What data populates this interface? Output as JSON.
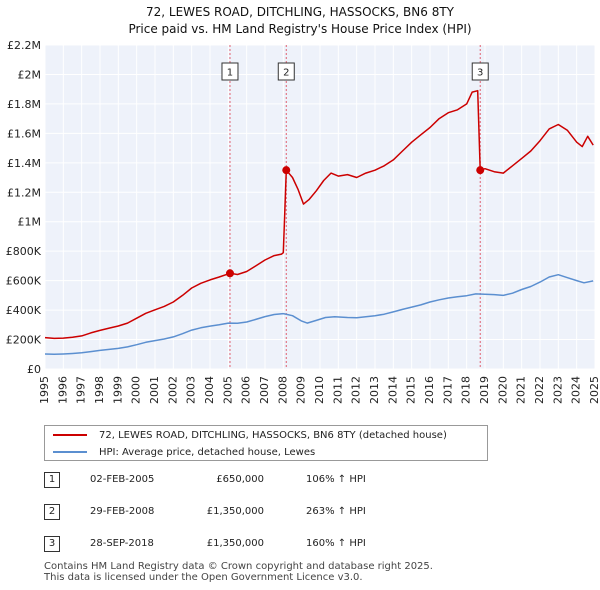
{
  "chart_data": {
    "type": "line",
    "title": "72, LEWES ROAD, DITCHLING, HASSOCKS, BN6 8TY",
    "subtitle": "Price paid vs. HM Land Registry's House Price Index (HPI)",
    "xlabel": "",
    "ylabel": "",
    "xlim": [
      1995,
      2025
    ],
    "ylim": [
      0,
      2200000
    ],
    "x_ticks": [
      "1995",
      "1996",
      "1997",
      "1998",
      "1999",
      "2000",
      "2001",
      "2002",
      "2003",
      "2004",
      "2005",
      "2006",
      "2007",
      "2008",
      "2009",
      "2010",
      "2011",
      "2012",
      "2013",
      "2014",
      "2015",
      "2016",
      "2017",
      "2018",
      "2019",
      "2020",
      "2021",
      "2022",
      "2023",
      "2024",
      "2025"
    ],
    "y_ticks": [
      {
        "value": 0,
        "label": "£0"
      },
      {
        "value": 200000,
        "label": "£200K"
      },
      {
        "value": 400000,
        "label": "£400K"
      },
      {
        "value": 600000,
        "label": "£600K"
      },
      {
        "value": 800000,
        "label": "£800K"
      },
      {
        "value": 1000000,
        "label": "£1M"
      },
      {
        "value": 1200000,
        "label": "£1.2M"
      },
      {
        "value": 1400000,
        "label": "£1.4M"
      },
      {
        "value": 1600000,
        "label": "£1.6M"
      },
      {
        "value": 1800000,
        "label": "£1.8M"
      },
      {
        "value": 2000000,
        "label": "£2M"
      },
      {
        "value": 2200000,
        "label": "£2.2M"
      }
    ],
    "grid": true,
    "series": [
      {
        "name": "72, LEWES ROAD, DITCHLING, HASSOCKS, BN6 8TY (detached house)",
        "color": "#cc0000",
        "points": [
          [
            1995.0,
            213000
          ],
          [
            1995.5,
            208000
          ],
          [
            1996.0,
            210000
          ],
          [
            1996.5,
            215000
          ],
          [
            1997.0,
            225000
          ],
          [
            1997.5,
            245000
          ],
          [
            1998.0,
            262000
          ],
          [
            1998.5,
            278000
          ],
          [
            1999.0,
            292000
          ],
          [
            1999.5,
            312000
          ],
          [
            2000.0,
            345000
          ],
          [
            2000.5,
            378000
          ],
          [
            2001.0,
            402000
          ],
          [
            2001.5,
            425000
          ],
          [
            2002.0,
            455000
          ],
          [
            2002.5,
            500000
          ],
          [
            2003.0,
            550000
          ],
          [
            2003.5,
            582000
          ],
          [
            2004.0,
            605000
          ],
          [
            2004.5,
            625000
          ],
          [
            2005.09,
            650000
          ],
          [
            2005.5,
            642000
          ],
          [
            2006.0,
            662000
          ],
          [
            2006.5,
            700000
          ],
          [
            2007.0,
            740000
          ],
          [
            2007.5,
            770000
          ],
          [
            2007.9,
            780000
          ],
          [
            2008.0,
            790000
          ],
          [
            2008.16,
            1350000
          ],
          [
            2008.5,
            1300000
          ],
          [
            2008.8,
            1220000
          ],
          [
            2009.1,
            1120000
          ],
          [
            2009.4,
            1150000
          ],
          [
            2009.8,
            1210000
          ],
          [
            2010.2,
            1280000
          ],
          [
            2010.6,
            1330000
          ],
          [
            2011.0,
            1310000
          ],
          [
            2011.5,
            1320000
          ],
          [
            2012.0,
            1300000
          ],
          [
            2012.5,
            1330000
          ],
          [
            2013.0,
            1350000
          ],
          [
            2013.5,
            1380000
          ],
          [
            2014.0,
            1420000
          ],
          [
            2014.5,
            1480000
          ],
          [
            2015.0,
            1540000
          ],
          [
            2015.5,
            1590000
          ],
          [
            2016.0,
            1640000
          ],
          [
            2016.5,
            1700000
          ],
          [
            2017.0,
            1740000
          ],
          [
            2017.5,
            1760000
          ],
          [
            2018.0,
            1800000
          ],
          [
            2018.3,
            1880000
          ],
          [
            2018.6,
            1890000
          ],
          [
            2018.74,
            1350000
          ],
          [
            2019.0,
            1360000
          ],
          [
            2019.5,
            1340000
          ],
          [
            2020.0,
            1330000
          ],
          [
            2020.5,
            1380000
          ],
          [
            2021.0,
            1430000
          ],
          [
            2021.5,
            1480000
          ],
          [
            2022.0,
            1550000
          ],
          [
            2022.5,
            1630000
          ],
          [
            2023.0,
            1660000
          ],
          [
            2023.5,
            1620000
          ],
          [
            2024.0,
            1540000
          ],
          [
            2024.3,
            1510000
          ],
          [
            2024.6,
            1580000
          ],
          [
            2024.9,
            1520000
          ]
        ]
      },
      {
        "name": "HPI: Average price, detached house, Lewes",
        "color": "#5b8fd0",
        "points": [
          [
            1995.0,
            102000
          ],
          [
            1995.5,
            100000
          ],
          [
            1996.0,
            102000
          ],
          [
            1996.5,
            105000
          ],
          [
            1997.0,
            110000
          ],
          [
            1997.5,
            118000
          ],
          [
            1998.0,
            126000
          ],
          [
            1998.5,
            133000
          ],
          [
            1999.0,
            140000
          ],
          [
            1999.5,
            150000
          ],
          [
            2000.0,
            165000
          ],
          [
            2000.5,
            181000
          ],
          [
            2001.0,
            193000
          ],
          [
            2001.5,
            204000
          ],
          [
            2002.0,
            218000
          ],
          [
            2002.5,
            240000
          ],
          [
            2003.0,
            264000
          ],
          [
            2003.5,
            280000
          ],
          [
            2004.0,
            291000
          ],
          [
            2004.5,
            301000
          ],
          [
            2005.0,
            312000
          ],
          [
            2005.5,
            310000
          ],
          [
            2006.0,
            319000
          ],
          [
            2006.5,
            337000
          ],
          [
            2007.0,
            356000
          ],
          [
            2007.5,
            370000
          ],
          [
            2008.0,
            376000
          ],
          [
            2008.5,
            362000
          ],
          [
            2009.0,
            325000
          ],
          [
            2009.3,
            312000
          ],
          [
            2009.8,
            330000
          ],
          [
            2010.3,
            350000
          ],
          [
            2010.8,
            355000
          ],
          [
            2011.5,
            350000
          ],
          [
            2012.0,
            348000
          ],
          [
            2012.5,
            355000
          ],
          [
            2013.0,
            362000
          ],
          [
            2013.5,
            372000
          ],
          [
            2014.0,
            388000
          ],
          [
            2014.5,
            405000
          ],
          [
            2015.0,
            420000
          ],
          [
            2015.5,
            435000
          ],
          [
            2016.0,
            455000
          ],
          [
            2016.5,
            470000
          ],
          [
            2017.0,
            482000
          ],
          [
            2017.5,
            490000
          ],
          [
            2018.0,
            498000
          ],
          [
            2018.5,
            510000
          ],
          [
            2019.0,
            508000
          ],
          [
            2019.5,
            505000
          ],
          [
            2020.0,
            500000
          ],
          [
            2020.5,
            515000
          ],
          [
            2021.0,
            540000
          ],
          [
            2021.5,
            560000
          ],
          [
            2022.0,
            590000
          ],
          [
            2022.5,
            625000
          ],
          [
            2023.0,
            640000
          ],
          [
            2023.5,
            620000
          ],
          [
            2024.0,
            600000
          ],
          [
            2024.4,
            585000
          ],
          [
            2024.9,
            598000
          ]
        ]
      }
    ],
    "sales": [
      {
        "num": "1",
        "x": 2005.09,
        "price": 650000
      },
      {
        "num": "2",
        "x": 2008.16,
        "price": 1350000
      },
      {
        "num": "3",
        "x": 2018.74,
        "price": 1350000
      }
    ],
    "legend": [
      {
        "label": "72, LEWES ROAD, DITCHLING, HASSOCKS, BN6 8TY (detached house)",
        "color": "#cc0000"
      },
      {
        "label": "HPI: Average price, detached house, Lewes",
        "color": "#5b8fd0"
      }
    ]
  },
  "colors": {
    "plot_background": "#eef2fa",
    "grid": "#ffffff",
    "property_line": "#cc0000",
    "hpi_line": "#5b8fd0",
    "sale_vline": "#e06070"
  },
  "table": [
    {
      "num": "1",
      "date": "02-FEB-2005",
      "price": "£650,000",
      "hpi": "106% ↑ HPI"
    },
    {
      "num": "2",
      "date": "29-FEB-2008",
      "price": "£1,350,000",
      "hpi": "263% ↑ HPI"
    },
    {
      "num": "3",
      "date": "28-SEP-2018",
      "price": "£1,350,000",
      "hpi": "160% ↑ HPI"
    }
  ],
  "footer": {
    "line1": "Contains HM Land Registry data © Crown copyright and database right 2025.",
    "line2": "This data is licensed under the Open Government Licence v3.0."
  }
}
